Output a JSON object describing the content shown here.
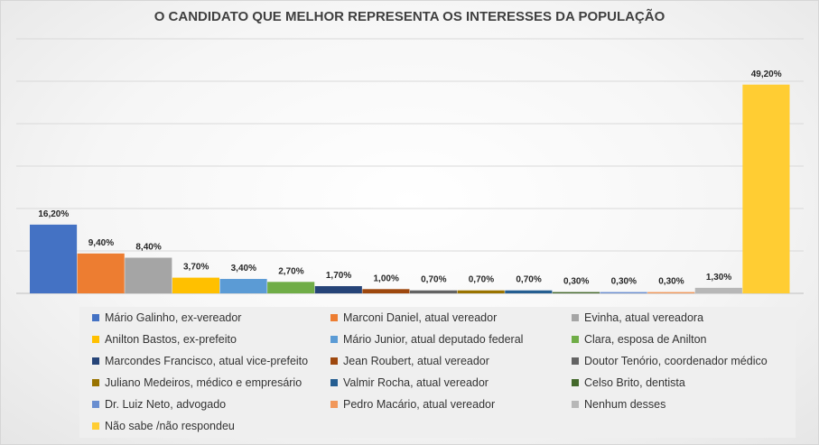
{
  "chart_data": {
    "type": "bar",
    "title": "O CANDIDATO QUE MELHOR REPRESENTA OS INTERESSES DA POPULAÇÃO",
    "xlabel": "",
    "ylabel": "",
    "ylim": [
      0,
      60
    ],
    "grid": true,
    "legend_position": "bottom",
    "series": [
      {
        "name": "Mário Galinho, ex-vereador",
        "value": 16.2,
        "label": "16,20%",
        "color": "#4472C4"
      },
      {
        "name": "Marconi Daniel, atual vereador",
        "value": 9.4,
        "label": "9,40%",
        "color": "#ED7D31"
      },
      {
        "name": "Evinha, atual vereadora",
        "value": 8.4,
        "label": "8,40%",
        "color": "#A5A5A5"
      },
      {
        "name": "Anilton Bastos, ex-prefeito",
        "value": 3.7,
        "label": "3,70%",
        "color": "#FFC000"
      },
      {
        "name": "Mário Junior, atual deputado federal",
        "value": 3.4,
        "label": "3,40%",
        "color": "#5B9BD5"
      },
      {
        "name": "Clara, esposa de Anilton",
        "value": 2.7,
        "label": "2,70%",
        "color": "#70AD47"
      },
      {
        "name": "Marcondes Francisco, atual vice-prefeito",
        "value": 1.7,
        "label": "1,70%",
        "color": "#264478"
      },
      {
        "name": "Jean Roubert, atual vereador",
        "value": 1.0,
        "label": "1,00%",
        "color": "#9E480E"
      },
      {
        "name": "Doutor Tenório, coordenador médico",
        "value": 0.7,
        "label": "0,70%",
        "color": "#636363"
      },
      {
        "name": "Juliano Medeiros, médico e empresário",
        "value": 0.7,
        "label": "0,70%",
        "color": "#997300"
      },
      {
        "name": "Valmir Rocha, atual vereador",
        "value": 0.7,
        "label": "0,70%",
        "color": "#255E91"
      },
      {
        "name": "Celso Brito, dentista",
        "value": 0.3,
        "label": "0,30%",
        "color": "#43682B"
      },
      {
        "name": "Dr. Luiz Neto, advogado",
        "value": 0.3,
        "label": "0,30%",
        "color": "#698ED0"
      },
      {
        "name": "Pedro Macário, atual vereador",
        "value": 0.3,
        "label": "0,30%",
        "color": "#F1975A"
      },
      {
        "name": "Nenhum desses",
        "value": 1.3,
        "label": "1,30%",
        "color": "#B7B7B7"
      },
      {
        "name": "Não sabe /não respondeu",
        "value": 49.2,
        "label": "49,20%",
        "color": "#FFCD33"
      }
    ]
  }
}
